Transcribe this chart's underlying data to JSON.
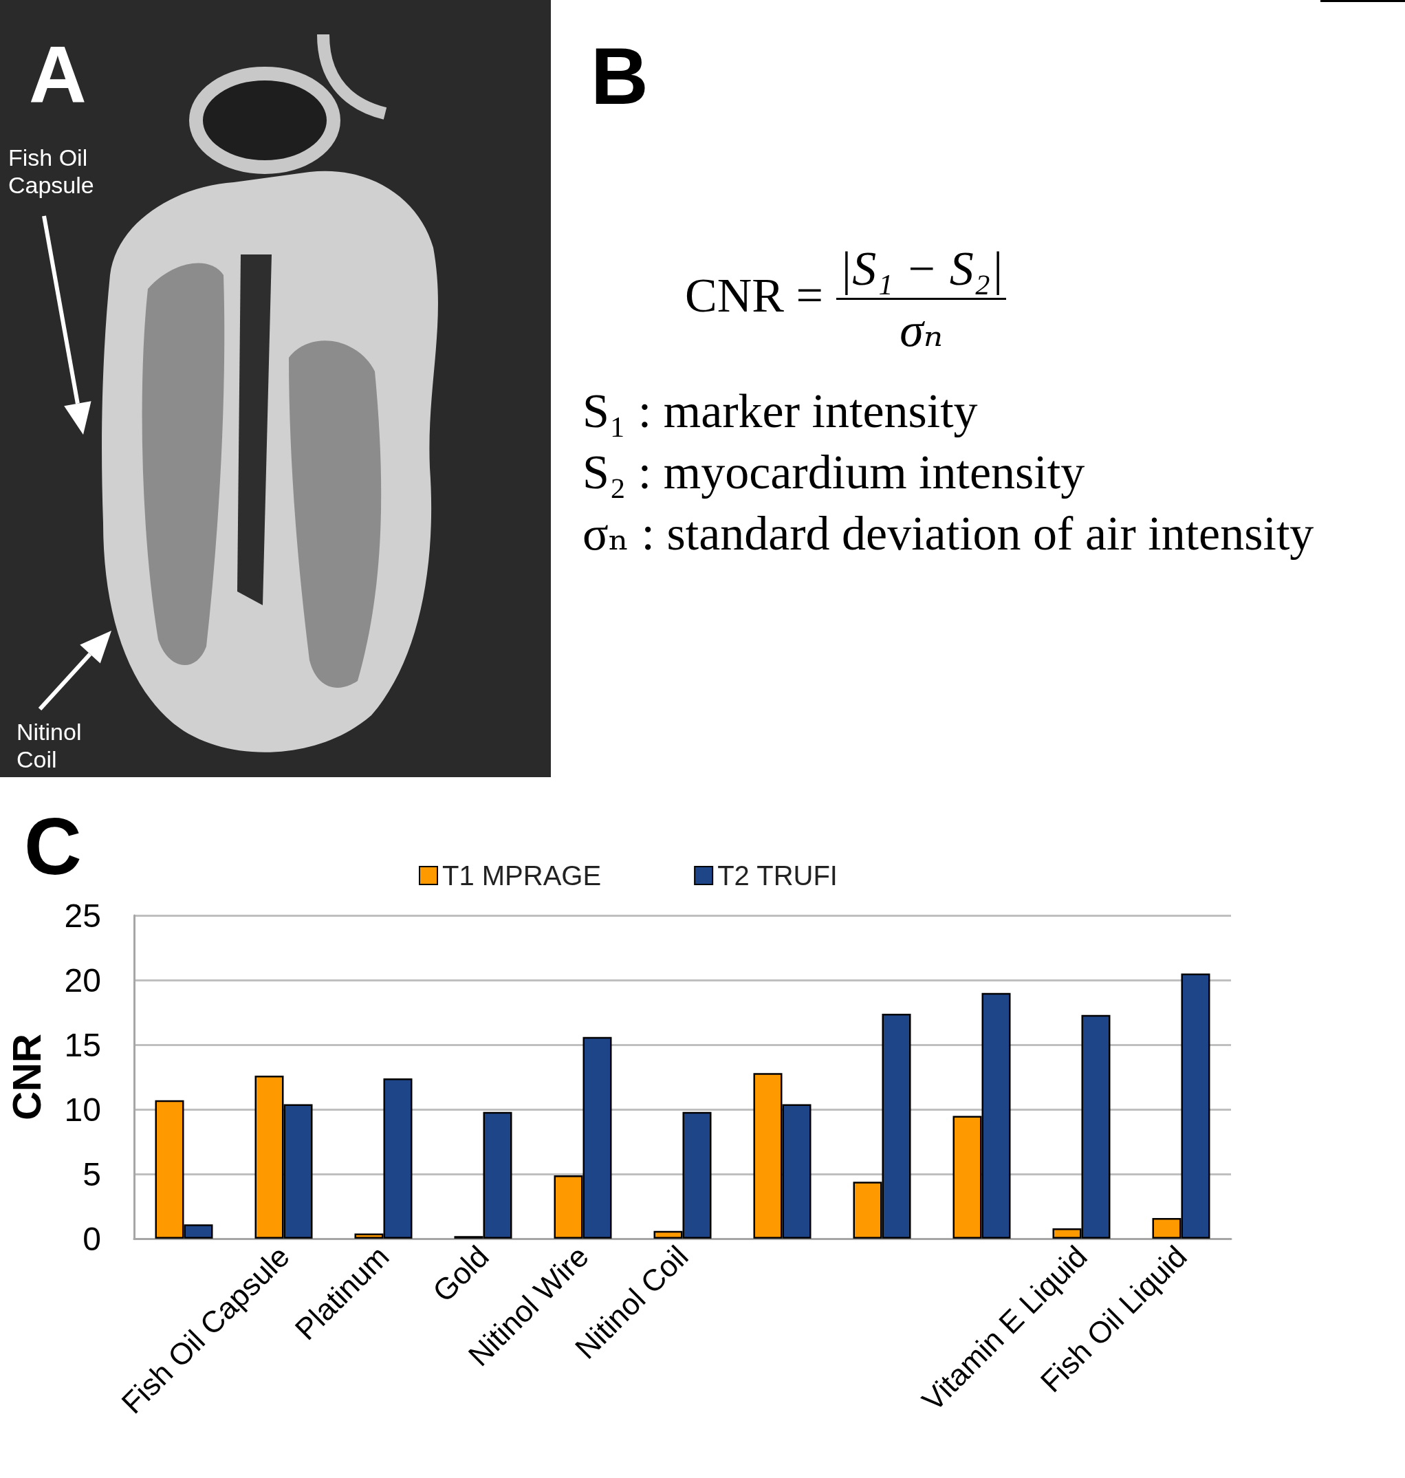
{
  "chart_data": [
    {
      "type": "other",
      "title": "A",
      "annotations": [
        "Fish Oil Capsule",
        "Nitinol Coil"
      ]
    },
    {
      "type": "other",
      "title": "B",
      "annotations": [
        "CNR =",
        "|S₁ − S₂|",
        "σₙ",
        "S₁ : marker intensity",
        "S₂ : myocardium intensity",
        "σₙ : standard deviation of air intensity"
      ]
    },
    {
      "type": "bar",
      "title": "C",
      "ylabel": "CNR",
      "categories": [
        null,
        "Fish Oil Capsule",
        "Platinum",
        "Gold",
        "Nitinol Wire",
        "Nitinol Coil",
        null,
        null,
        null,
        "Vitamin E Liquid",
        "Fish Oil Liquid"
      ],
      "series": [
        {
          "name": "T1 MPRAGE",
          "color": "#ff9900",
          "values": [
            10.7,
            12.6,
            0.4,
            0.2,
            4.9,
            0.6,
            12.8,
            4.4,
            9.5,
            0.8,
            1.6
          ]
        },
        {
          "name": "T2 TRUFI",
          "color": "#1f4589",
          "values": [
            1.1,
            10.4,
            12.4,
            9.8,
            15.6,
            9.8,
            10.4,
            17.4,
            19.0,
            17.3,
            20.5
          ]
        }
      ],
      "ylim": [
        0,
        25
      ],
      "yticks": [
        0,
        5,
        10,
        15,
        20,
        25
      ],
      "grid": "y",
      "legend": "top"
    }
  ]
}
